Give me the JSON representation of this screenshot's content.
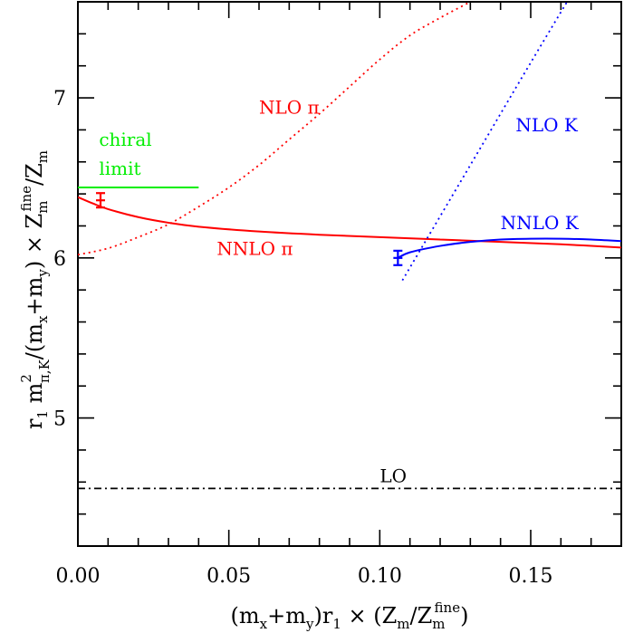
{
  "chart_data": {
    "type": "line",
    "xlim": [
      0.0,
      0.18
    ],
    "ylim": [
      4.2,
      7.6
    ],
    "xticks": [
      "0.00",
      "0.05",
      "0.10",
      "0.15"
    ],
    "xtick_values": [
      0.0,
      0.05,
      0.1,
      0.15
    ],
    "yticks": [
      "5",
      "6",
      "7"
    ],
    "ytick_values": [
      5,
      6,
      7
    ],
    "xlabel": {
      "main": "(m",
      "sub_x": "x",
      "plus": "+m",
      "sub_y": "y",
      "rest": ")r",
      "sub_1": "1",
      "times": " × (Z",
      "sub_m": "m",
      "slash": "/Z",
      "sub_m2": "m",
      "sup_fine": "fine",
      "close": ")"
    },
    "ylabel": {
      "r": "r",
      "sub_1": "1",
      "m": "  m",
      "sup_2": "2",
      "sub_piK": "π,K",
      "mid": "/(m",
      "sub_x": "x",
      "plus": "+m",
      "sub_y": "y",
      "rest": ")  ×  Z",
      "sub_m": "m",
      "sup_fine": "fine",
      "tail": "/Z",
      "sub_m2": "m"
    },
    "grid": false,
    "series": [
      {
        "name": "NNLO π",
        "color": "#ff0000",
        "style": "solid",
        "x": [
          0.0,
          0.005,
          0.01,
          0.02,
          0.03,
          0.04,
          0.06,
          0.08,
          0.1,
          0.12,
          0.14,
          0.16,
          0.18
        ],
        "y": [
          6.38,
          6.34,
          6.305,
          6.255,
          6.22,
          6.195,
          6.165,
          6.145,
          6.13,
          6.115,
          6.1,
          6.085,
          6.065
        ]
      },
      {
        "name": "NLO π",
        "color": "#ff0000",
        "style": "dotted",
        "x": [
          0.0,
          0.01,
          0.02,
          0.03,
          0.04,
          0.05,
          0.06,
          0.07,
          0.08,
          0.09,
          0.1,
          0.11,
          0.12,
          0.13
        ],
        "y": [
          6.02,
          6.06,
          6.13,
          6.21,
          6.32,
          6.44,
          6.58,
          6.74,
          6.9,
          7.07,
          7.24,
          7.39,
          7.5,
          7.6
        ]
      },
      {
        "name": "NNLO K",
        "color": "#0000ff",
        "style": "solid",
        "x": [
          0.106,
          0.11,
          0.12,
          0.13,
          0.14,
          0.15,
          0.16,
          0.17,
          0.18
        ],
        "y": [
          6.0,
          6.035,
          6.075,
          6.1,
          6.115,
          6.12,
          6.12,
          6.115,
          6.105
        ]
      },
      {
        "name": "NLO K",
        "color": "#0000ff",
        "style": "dotted",
        "x": [
          0.1075,
          0.13,
          0.15,
          0.1665
        ],
        "y": [
          5.86,
          6.58,
          7.22,
          7.74
        ]
      },
      {
        "name": "LO",
        "color": "#000000",
        "style": "dashdot",
        "x": [
          0.0,
          0.18
        ],
        "y": [
          4.56,
          4.56
        ]
      },
      {
        "name": "chiral limit",
        "color": "#00ee00",
        "style": "solid",
        "x": [
          0.0,
          0.04
        ],
        "y": [
          6.44,
          6.44
        ]
      }
    ],
    "points": [
      {
        "series": "π",
        "x": 0.0075,
        "y": 6.36,
        "xerr": 0.0015,
        "yerr": 0.045,
        "color": "#ff0000"
      },
      {
        "series": "K",
        "x": 0.106,
        "y": 6.0,
        "xerr": 0.0015,
        "yerr": 0.045,
        "color": "#0000ff"
      }
    ],
    "annotations": [
      {
        "text": "NLO π",
        "x": 0.06,
        "y": 6.9,
        "color": "#ff0000"
      },
      {
        "text": "NNLO π",
        "x": 0.046,
        "y": 6.02,
        "color": "#ff0000"
      },
      {
        "text": "NLO K",
        "x": 0.145,
        "y": 6.79,
        "color": "#0000ff"
      },
      {
        "text": "NNLO K",
        "x": 0.14,
        "y": 6.18,
        "color": "#0000ff"
      },
      {
        "text": "chiral",
        "x": 0.007,
        "y": 6.7,
        "color": "#00ee00"
      },
      {
        "text": "limit",
        "x": 0.007,
        "y": 6.52,
        "color": "#00ee00"
      },
      {
        "text": "LO",
        "x": 0.1,
        "y": 4.6,
        "color": "#000000"
      }
    ]
  }
}
